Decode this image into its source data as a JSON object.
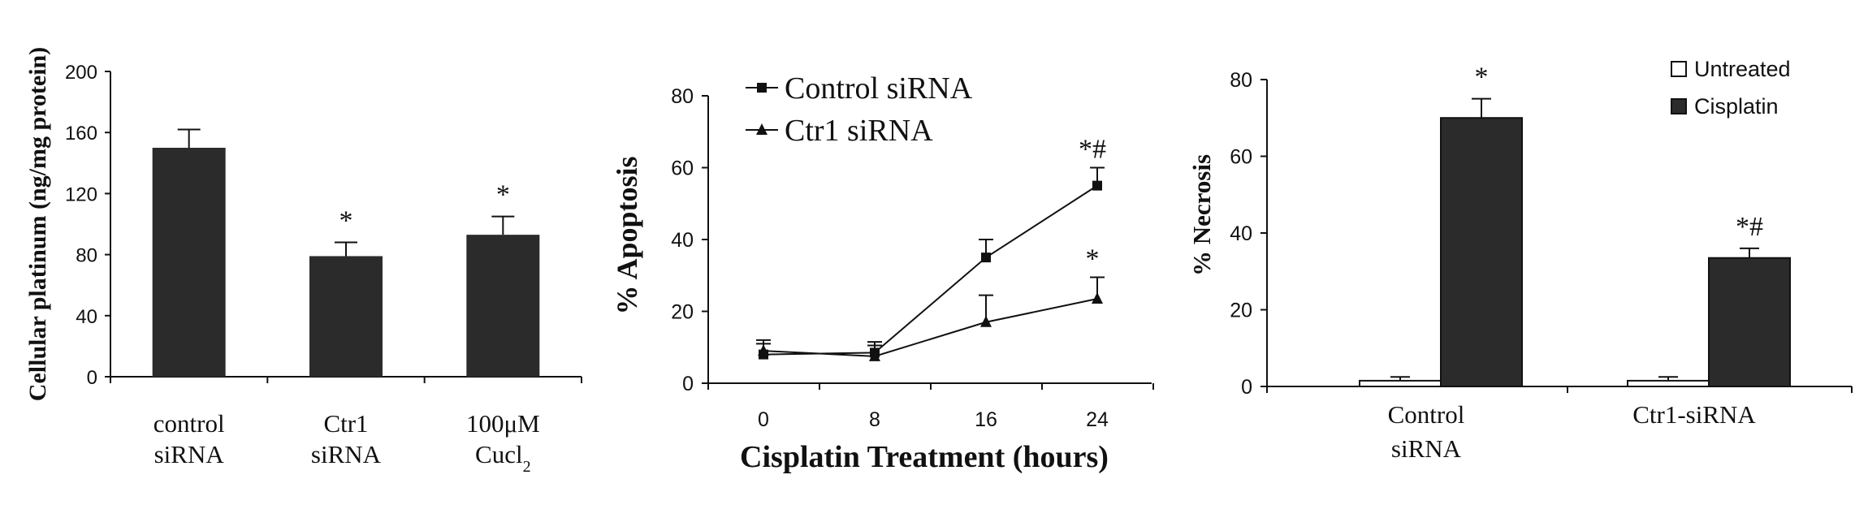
{
  "chart_data": [
    {
      "type": "bar",
      "ylabel": "Cellular platinum (ng/mg protein)",
      "ylim": [
        0,
        200
      ],
      "yticks": [
        "0",
        "40",
        "80",
        "120",
        "160",
        "200"
      ],
      "categories": [
        {
          "lines": [
            "control",
            "siRNA"
          ]
        },
        {
          "lines": [
            "Ctr1",
            "siRNA"
          ]
        },
        {
          "lines": [
            "100μM",
            "Cucl"
          ],
          "subscript": "2"
        }
      ],
      "values": [
        150,
        79,
        93
      ],
      "errors": [
        12,
        9,
        12
      ],
      "annotations": [
        "",
        "*",
        "*"
      ],
      "colors": {
        "bar": "#2b2b2b"
      }
    },
    {
      "type": "line",
      "xlabel": "Cisplatin Treatment (hours)",
      "ylabel": "% Apoptosis",
      "ylim": [
        0,
        80
      ],
      "yticks": [
        "0",
        "20",
        "40",
        "60",
        "80"
      ],
      "x": [
        0,
        8,
        16,
        24
      ],
      "xticks": [
        "0",
        "8",
        "16",
        "24"
      ],
      "series": [
        {
          "name": "Control siRNA",
          "marker": "square",
          "values": [
            8,
            8.5,
            35,
            55
          ],
          "errors": [
            3,
            3,
            5,
            5
          ],
          "annotation": "*#"
        },
        {
          "name": "Ctr1 siRNA",
          "marker": "triangle",
          "values": [
            9,
            7.5,
            17,
            23.5
          ],
          "errors": [
            3,
            3,
            7.5,
            6
          ],
          "annotation": "*"
        }
      ],
      "legend": "top-left",
      "colors": {
        "line": "#111111"
      }
    },
    {
      "type": "bar",
      "ylabel": "% Necrosis",
      "ylim": [
        0,
        80
      ],
      "yticks": [
        "0",
        "20",
        "40",
        "60",
        "80"
      ],
      "categories": [
        {
          "lines": [
            "Control",
            "siRNA"
          ]
        },
        {
          "lines": [
            "Ctr1-siRNA"
          ]
        }
      ],
      "series": [
        {
          "name": "Untreated",
          "values": [
            1.5,
            1.5
          ],
          "errors": [
            1,
            1
          ],
          "annotations": [
            "",
            ""
          ]
        },
        {
          "name": "Cisplatin",
          "values": [
            70,
            33.5
          ],
          "errors": [
            5,
            2.5
          ],
          "annotations": [
            "*",
            "*#"
          ]
        }
      ],
      "legend": "top-right",
      "colors": {
        "untreated": "#ffffff",
        "cisplatin": "#2b2b2b"
      }
    }
  ]
}
